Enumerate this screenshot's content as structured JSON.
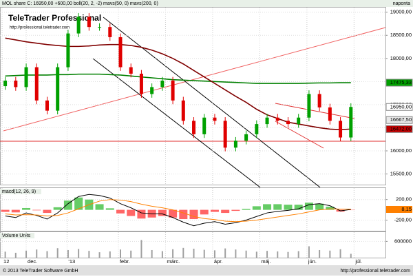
{
  "chart_data": {
    "type": "candlestick",
    "title": "MOL share C: 16950,00 +600,00 boll(20, 2, -2) mavs(50, 0) mavs(200, 0)",
    "interval": "naponta",
    "watermark": "TeleTrader Professional",
    "watermark_url": "http://professional.teletrader.com",
    "footer_left": "© 2013 TeleTrader Software GmbH",
    "footer_right": "http://professional.teletrader.com",
    "up_color": "#00a000",
    "down_color": "#e00000",
    "xlim": [
      -0.5,
      36.3
    ],
    "xticks": [
      {
        "value": -0.3,
        "label": "12"
      },
      {
        "value": 2.0,
        "label": "dec."
      },
      {
        "value": 5.9,
        "label": "'13"
      },
      {
        "value": 10.8,
        "label": "febr."
      },
      {
        "value": 15.3,
        "label": "márc."
      },
      {
        "value": 19.8,
        "label": "ápr."
      },
      {
        "value": 24.3,
        "label": "máj."
      },
      {
        "value": 28.8,
        "label": "jún."
      },
      {
        "value": 33.3,
        "label": "júl."
      }
    ],
    "ylim": [
      15270,
      19100
    ],
    "yticks": [
      {
        "value": 15500,
        "label": "15500,00"
      },
      {
        "value": 16000,
        "label": "16000,00"
      },
      {
        "value": 16500,
        "label": "16500,00"
      },
      {
        "value": 17000,
        "label": "17000,00"
      },
      {
        "value": 17500,
        "label": "17500,00"
      },
      {
        "value": 18000,
        "label": "18000,00"
      },
      {
        "value": 18500,
        "label": "18500,00"
      },
      {
        "value": 19000,
        "label": "19000,00"
      }
    ],
    "open": [
      17400,
      17520,
      17380,
      17810,
      17090,
      16870,
      17810,
      18540,
      18900,
      18680,
      18680,
      18460,
      17810,
      17670,
      17230,
      17380,
      17520,
      17090,
      16650,
      16360,
      16720,
      16650,
      16070,
      16220,
      16360,
      16580,
      16720,
      16650,
      16580,
      16720,
      17230,
      16940,
      16650,
      16290
    ],
    "high": [
      17600,
      17600,
      17890,
      17890,
      17170,
      17890,
      18620,
      18980,
      18980,
      18760,
      18760,
      18540,
      17890,
      17750,
      17460,
      17600,
      17600,
      17170,
      16730,
      16800,
      16800,
      16730,
      16300,
      16440,
      16660,
      16800,
      16800,
      16730,
      16800,
      17310,
      17310,
      17020,
      16730,
      17030
    ],
    "low": [
      17320,
      17300,
      17300,
      17010,
      16790,
      16790,
      17730,
      18460,
      18600,
      18600,
      18380,
      17730,
      17590,
      17150,
      17150,
      17300,
      17010,
      16570,
      16280,
      16280,
      16570,
      15990,
      15990,
      16140,
      16280,
      16500,
      16570,
      16500,
      16500,
      16640,
      16860,
      16570,
      16210,
      16210
    ],
    "close": [
      17520,
      17380,
      17810,
      17090,
      16870,
      17810,
      18540,
      18900,
      18680,
      18680,
      18460,
      17810,
      17670,
      17230,
      17380,
      17520,
      17090,
      16650,
      16360,
      16720,
      16650,
      16070,
      16220,
      16360,
      16580,
      16720,
      16650,
      16580,
      16720,
      17230,
      16940,
      16650,
      16290,
      16950
    ],
    "series": [
      {
        "name": "mavs(200, 0)",
        "color": "#008000",
        "values": [
          17620,
          17630,
          17640,
          17640,
          17640,
          17650,
          17650,
          17660,
          17660,
          17660,
          17650,
          17640,
          17620,
          17600,
          17580,
          17560,
          17540,
          17530,
          17520,
          17510,
          17500,
          17490,
          17480,
          17470,
          17460,
          17460,
          17460,
          17460,
          17460,
          17465,
          17470,
          17470,
          17475,
          17475
        ]
      },
      {
        "name": "mavs(50, 0)",
        "color": "#800000",
        "values": [
          18440,
          18400,
          18360,
          18330,
          18300,
          18280,
          18260,
          18260,
          18270,
          18290,
          18300,
          18300,
          18280,
          18240,
          18180,
          18100,
          18000,
          17880,
          17740,
          17600,
          17460,
          17320,
          17180,
          17050,
          16900,
          16780,
          16700,
          16620,
          16580,
          16540,
          16500,
          16470,
          16460,
          16472
        ]
      }
    ],
    "price_labels": [
      {
        "value": 17475.33,
        "label": "17475,33",
        "color": "#00a000"
      },
      {
        "value": 16950,
        "label": "16950,00",
        "color": "#ffffff"
      },
      {
        "value": 16667.5,
        "label": "16667,50",
        "color": "#e8e8e8"
      },
      {
        "value": 16472,
        "label": "16472,00",
        "color": "#c00000"
      }
    ],
    "macd": {
      "title": "macd(12, 26, 9)",
      "ylim": [
        -408,
        424
      ],
      "yticks": [
        {
          "value": -200,
          "label": "-200,00"
        },
        {
          "value": 200,
          "label": "200,00"
        }
      ],
      "macd_color": "#000000",
      "signal_color": "#ff8000",
      "hist_up_color": "#66cc66",
      "hist_down_color": "#ff6666",
      "macd": [
        -120,
        -150,
        -60,
        -110,
        -180,
        -60,
        120,
        260,
        300,
        280,
        230,
        120,
        40,
        -60,
        -80,
        -80,
        -150,
        -240,
        -310,
        -260,
        -230,
        -280,
        -250,
        -200,
        -130,
        -60,
        -30,
        -10,
        20,
        100,
        120,
        80,
        -20,
        8
      ],
      "signal": [
        -80,
        -100,
        -95,
        -100,
        -120,
        -110,
        -60,
        20,
        100,
        170,
        200,
        190,
        160,
        110,
        70,
        40,
        0,
        -60,
        -130,
        -170,
        -190,
        -220,
        -230,
        -220,
        -200,
        -170,
        -140,
        -110,
        -80,
        -40,
        0,
        20,
        15,
        14
      ],
      "histogram": [
        -40,
        -50,
        35,
        -10,
        -60,
        50,
        180,
        240,
        200,
        110,
        30,
        -70,
        -120,
        -170,
        -150,
        -120,
        -150,
        -180,
        -180,
        -90,
        -40,
        -60,
        -20,
        20,
        70,
        110,
        110,
        100,
        100,
        140,
        120,
        60,
        -35,
        -6
      ],
      "last": {
        "value": 8.15,
        "label": "8,15"
      }
    },
    "volume": {
      "title": "Volume Units",
      "color": "#a0a0a0",
      "ylim": [
        0,
        940000
      ],
      "yticks": [
        600000
      ],
      "values": [
        220000,
        180000,
        260000,
        300000,
        240000,
        350000,
        280000,
        320000,
        250000,
        200000,
        230000,
        300000,
        260000,
        650000,
        280000,
        240000,
        310000,
        360000,
        330000,
        290000,
        270000,
        340000,
        300000,
        260000,
        220000,
        250000,
        230000,
        210000,
        240000,
        420000,
        280000,
        260000,
        310000,
        141448
      ]
    }
  }
}
